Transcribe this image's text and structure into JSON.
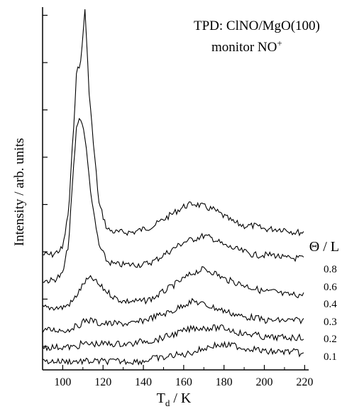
{
  "chart_data": {
    "type": "line",
    "title": "TPD: ClNO/MgO(100)",
    "subtitle": "monitor NO",
    "subtitle_superscript": "+",
    "xlabel": "T",
    "xlabel_subscript": "d",
    "xlabel_unit": " / K",
    "ylabel": "Intensity / arb. units",
    "legend_title": "Θ / L",
    "legend_placement": "right",
    "grid": false,
    "xlim": [
      90,
      222
    ],
    "x_ticks": [
      "100",
      "120",
      "140",
      "160",
      "180",
      "200",
      "220"
    ],
    "y_ticks_labeled": false,
    "x": [
      90,
      95,
      100,
      103,
      105,
      107,
      109,
      111,
      113,
      115,
      118,
      122,
      126,
      130,
      135,
      140,
      145,
      150,
      155,
      160,
      165,
      170,
      175,
      180,
      185,
      190,
      195,
      200,
      205,
      210,
      215,
      220
    ],
    "series": [
      {
        "name": "0.8",
        "values": [
          0.6,
          0.6,
          0.8,
          2.0,
          4.2,
          6.4,
          6.6,
          8.3,
          5.8,
          4.2,
          2.2,
          1.4,
          1.3,
          1.3,
          1.3,
          1.4,
          1.5,
          1.7,
          1.9,
          2.1,
          2.2,
          2.1,
          2.0,
          1.8,
          1.6,
          1.5,
          1.5,
          1.4,
          1.4,
          1.4,
          1.3,
          1.3
        ]
      },
      {
        "name": "0.6",
        "values": [
          0.3,
          0.3,
          0.5,
          1.5,
          3.5,
          5.2,
          5.4,
          4.8,
          3.6,
          2.5,
          1.4,
          0.9,
          0.8,
          0.8,
          0.8,
          0.8,
          0.9,
          1.1,
          1.3,
          1.5,
          1.6,
          1.7,
          1.6,
          1.4,
          1.3,
          1.2,
          1.1,
          1.1,
          1.1,
          1.0,
          1.0,
          1.0
        ]
      },
      {
        "name": "0.4",
        "values": [
          0.1,
          0.1,
          0.1,
          0.2,
          0.3,
          0.5,
          0.7,
          0.9,
          1.0,
          1.0,
          0.8,
          0.6,
          0.4,
          0.3,
          0.3,
          0.3,
          0.4,
          0.6,
          0.8,
          1.0,
          1.2,
          1.3,
          1.2,
          1.0,
          0.9,
          0.8,
          0.7,
          0.6,
          0.6,
          0.5,
          0.5,
          0.5
        ]
      },
      {
        "name": "0.3",
        "values": [
          0.0,
          0.0,
          0.0,
          0.0,
          0.1,
          0.1,
          0.2,
          0.3,
          0.3,
          0.3,
          0.2,
          0.2,
          0.2,
          0.2,
          0.2,
          0.3,
          0.4,
          0.5,
          0.6,
          0.8,
          0.9,
          0.8,
          0.7,
          0.6,
          0.5,
          0.4,
          0.4,
          0.3,
          0.3,
          0.3,
          0.3,
          0.3
        ]
      },
      {
        "name": "0.2",
        "values": [
          0.0,
          0.0,
          0.0,
          0.0,
          0.0,
          0.0,
          0.1,
          0.1,
          0.1,
          0.1,
          0.1,
          0.1,
          0.1,
          0.1,
          0.1,
          0.2,
          0.2,
          0.3,
          0.4,
          0.5,
          0.6,
          0.6,
          0.6,
          0.6,
          0.5,
          0.4,
          0.4,
          0.3,
          0.3,
          0.3,
          0.3,
          0.3
        ]
      },
      {
        "name": "0.1",
        "values": [
          0.0,
          0.0,
          0.0,
          0.0,
          0.0,
          0.0,
          0.0,
          0.0,
          0.0,
          0.0,
          0.0,
          0.0,
          0.0,
          0.0,
          0.0,
          0.0,
          0.1,
          0.1,
          0.2,
          0.2,
          0.3,
          0.4,
          0.5,
          0.5,
          0.5,
          0.4,
          0.4,
          0.3,
          0.3,
          0.3,
          0.3,
          0.2
        ]
      }
    ]
  }
}
